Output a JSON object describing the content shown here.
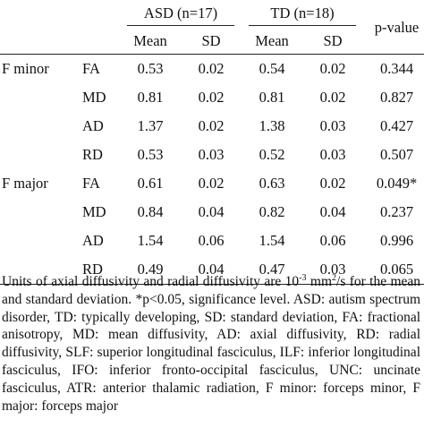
{
  "table": {
    "group_headers": {
      "asd": "ASD (n=17)",
      "td": "TD (n=18)",
      "pvalue": "p-value"
    },
    "sub_headers": [
      "Mean",
      "SD",
      "Mean",
      "SD"
    ],
    "rows": [
      {
        "region": "F minor",
        "measure": "FA",
        "asd_mean": "0.53",
        "asd_sd": "0.02",
        "td_mean": "0.54",
        "td_sd": "0.02",
        "p": "0.344"
      },
      {
        "region": "",
        "measure": "MD",
        "asd_mean": "0.81",
        "asd_sd": "0.02",
        "td_mean": "0.81",
        "td_sd": "0.02",
        "p": "0.827"
      },
      {
        "region": "",
        "measure": "AD",
        "asd_mean": "1.37",
        "asd_sd": "0.02",
        "td_mean": "1.38",
        "td_sd": "0.03",
        "p": "0.427"
      },
      {
        "region": "",
        "measure": "RD",
        "asd_mean": "0.53",
        "asd_sd": "0.03",
        "td_mean": "0.52",
        "td_sd": "0.03",
        "p": "0.507"
      },
      {
        "region": "F major",
        "measure": "FA",
        "asd_mean": "0.61",
        "asd_sd": "0.02",
        "td_mean": "0.63",
        "td_sd": "0.02",
        "p": "0.049*"
      },
      {
        "region": "",
        "measure": "MD",
        "asd_mean": "0.84",
        "asd_sd": "0.04",
        "td_mean": "0.82",
        "td_sd": "0.04",
        "p": "0.237"
      },
      {
        "region": "",
        "measure": "AD",
        "asd_mean": "1.54",
        "asd_sd": "0.06",
        "td_mean": "1.54",
        "td_sd": "0.06",
        "p": "0.996"
      },
      {
        "region": "",
        "measure": "RD",
        "asd_mean": "0.49",
        "asd_sd": "0.04",
        "td_mean": "0.47",
        "td_sd": "0.03",
        "p": "0.065"
      }
    ]
  },
  "note": {
    "part1": "Units of axial diffusivity and radial diffusivity are 10",
    "exp1": "-3",
    "part2": " mm",
    "exp2": "2",
    "part3": "/s for the mean and standard deviation. *p<0.05, significance level. ASD: autism spectrum disorder, TD: typically developing, SD: standard deviation, FA: fractional anisotropy, MD: mean diffusivity, AD: axial diffusivity, RD: radial diffusivity, SLF: superior longitudinal fasciculus, ILF: inferior longitudinal fasciculus, IFO: inferior fronto-occipital fasciculus, UNC: uncinate fasciculus, ATR: anterior thalamic radiation, F minor: forceps minor, F major: forceps major"
  }
}
